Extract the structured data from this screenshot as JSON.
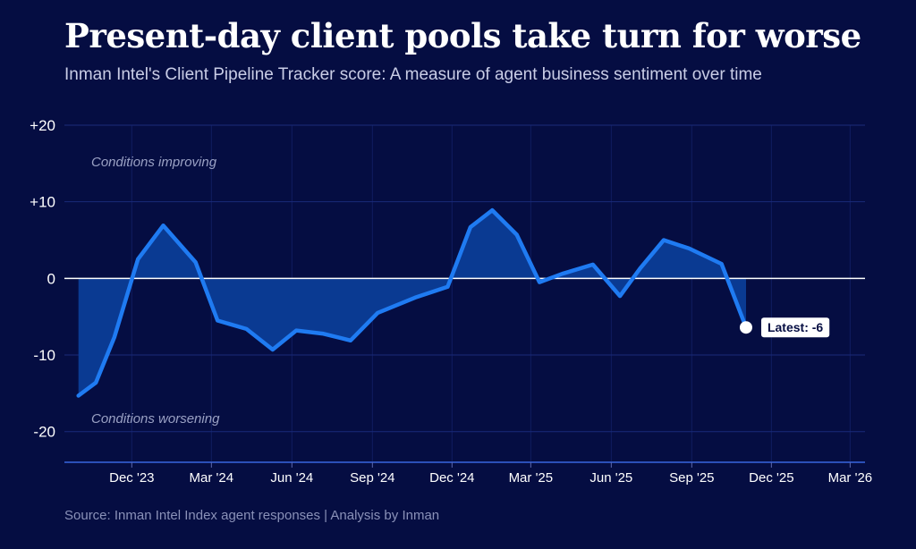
{
  "header": {
    "title": "Present-day client pools take turn for worse",
    "subtitle": "Inman Intel's Client Pipeline Tracker score: A measure of agent business sentiment over time"
  },
  "footer": {
    "source": "Source: Inman Intel Index agent responses | Analysis by Inman"
  },
  "colors": {
    "background": "#050d42",
    "line": "#1f7bf2",
    "area": "#0a3a92",
    "zero_line": "#ffffff",
    "grid": "#1a2a7a"
  },
  "chart_data": {
    "type": "area",
    "title": "Present-day client pools take turn for worse",
    "subtitle": "Inman Intel's Client Pipeline Tracker score: A measure of agent business sentiment over time",
    "xlabel": "",
    "ylabel": "",
    "ylim": [
      -24,
      20
    ],
    "xlim": [
      "2023-09-15",
      "2026-03-18"
    ],
    "grid": true,
    "y_ticks": [
      {
        "value": 20,
        "label": "+20"
      },
      {
        "value": 10,
        "label": "+10"
      },
      {
        "value": 0,
        "label": "0"
      },
      {
        "value": -10,
        "label": "-10"
      },
      {
        "value": -20,
        "label": "-20"
      }
    ],
    "x_ticks": [
      {
        "date": "2023-12-01",
        "label": "Dec '23"
      },
      {
        "date": "2024-03-01",
        "label": "Mar '24"
      },
      {
        "date": "2024-06-01",
        "label": "Jun '24"
      },
      {
        "date": "2024-09-01",
        "label": "Sep '24"
      },
      {
        "date": "2024-12-01",
        "label": "Dec '24"
      },
      {
        "date": "2025-03-01",
        "label": "Mar '25"
      },
      {
        "date": "2025-06-01",
        "label": "Jun '25"
      },
      {
        "date": "2025-09-01",
        "label": "Sep '25"
      },
      {
        "date": "2025-12-01",
        "label": "Dec '25"
      },
      {
        "date": "2026-03-01",
        "label": "Mar '26"
      }
    ],
    "series": [
      {
        "points": [
          {
            "x": "2023-10-01",
            "y": -15.3
          },
          {
            "x": "2023-10-21",
            "y": -13.6
          },
          {
            "x": "2023-11-11",
            "y": -7.7
          },
          {
            "x": "2023-12-08",
            "y": 2.5
          },
          {
            "x": "2024-01-06",
            "y": 6.9
          },
          {
            "x": "2024-02-12",
            "y": 2.1
          },
          {
            "x": "2024-03-08",
            "y": -5.5
          },
          {
            "x": "2024-04-10",
            "y": -6.6
          },
          {
            "x": "2024-05-10",
            "y": -9.3
          },
          {
            "x": "2024-06-06",
            "y": -6.8
          },
          {
            "x": "2024-07-06",
            "y": -7.2
          },
          {
            "x": "2024-08-07",
            "y": -8.1
          },
          {
            "x": "2024-09-07",
            "y": -4.5
          },
          {
            "x": "2024-10-20",
            "y": -2.5
          },
          {
            "x": "2024-11-26",
            "y": -1.1
          },
          {
            "x": "2024-12-22",
            "y": 6.7
          },
          {
            "x": "2025-01-16",
            "y": 8.9
          },
          {
            "x": "2025-02-13",
            "y": 5.7
          },
          {
            "x": "2025-03-11",
            "y": -0.5
          },
          {
            "x": "2025-04-06",
            "y": 0.6
          },
          {
            "x": "2025-05-11",
            "y": 1.8
          },
          {
            "x": "2025-06-11",
            "y": -2.3
          },
          {
            "x": "2025-07-04",
            "y": 1.3
          },
          {
            "x": "2025-07-31",
            "y": 5.0
          },
          {
            "x": "2025-08-29",
            "y": 3.9
          },
          {
            "x": "2025-10-05",
            "y": 1.9
          },
          {
            "x": "2025-11-02",
            "y": -6.4
          }
        ]
      }
    ],
    "annotations": {
      "improving": "Conditions improving",
      "worsening": "Conditions worsening",
      "latest": "Latest: -6"
    }
  }
}
